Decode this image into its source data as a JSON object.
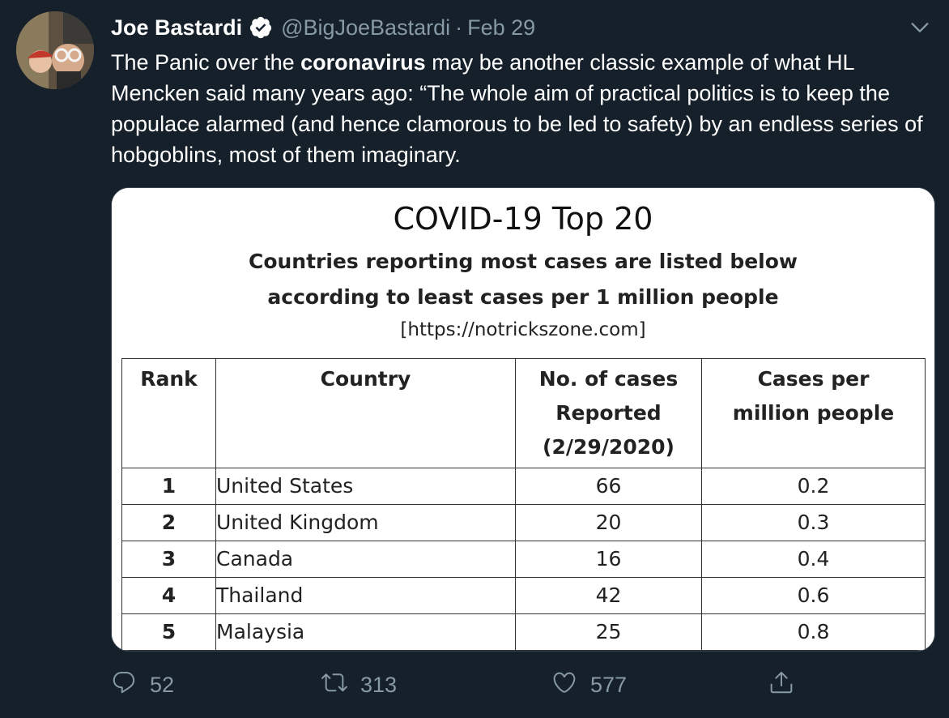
{
  "user": {
    "display_name": "Joe Bastardi",
    "handle": "@BigJoeBastardi",
    "separator": "·",
    "date": "Feb 29",
    "verified": true
  },
  "tweet": {
    "text_before": "The Panic over the ",
    "text_bold": "coronavirus",
    "text_after": "  may be another classic example of what HL Mencken said many years ago:  “The whole aim of practical politics is to keep the populace alarmed (and hence clamorous to be led to safety) by an endless series of hobgoblins, most of them imaginary."
  },
  "image": {
    "title": "COVID-19 Top 20",
    "subtitle_line1": "Countries reporting most cases are listed below",
    "subtitle_line2": "according to least cases per 1 million people",
    "source": "[https://notrickszone.com]",
    "headers": {
      "rank": "Rank",
      "country": "Country",
      "cases_line1": "No. of cases",
      "cases_line2": "Reported",
      "cases_line3": "(2/29/2020)",
      "per_million_line1": "Cases per",
      "per_million_line2": "million people"
    },
    "rows": [
      {
        "rank": "1",
        "country": "United States",
        "cases": "66",
        "per_million": "0.2"
      },
      {
        "rank": "2",
        "country": "United Kingdom",
        "cases": "20",
        "per_million": "0.3"
      },
      {
        "rank": "3",
        "country": "Canada",
        "cases": "16",
        "per_million": "0.4"
      },
      {
        "rank": "4",
        "country": "Thailand",
        "cases": "42",
        "per_million": "0.6"
      },
      {
        "rank": "5",
        "country": "Malaysia",
        "cases": "25",
        "per_million": "0.8"
      }
    ]
  },
  "actions": {
    "reply_count": "52",
    "retweet_count": "313",
    "like_count": "577"
  },
  "colors": {
    "background": "#15202b",
    "text_primary": "#ffffff",
    "text_secondary": "#8899a6",
    "verified_badge": "#ffffff"
  },
  "icons": {
    "verified": "verified-badge-icon",
    "more": "chevron-down-icon",
    "reply": "reply-icon",
    "retweet": "retweet-icon",
    "like": "heart-icon",
    "share": "share-icon"
  }
}
